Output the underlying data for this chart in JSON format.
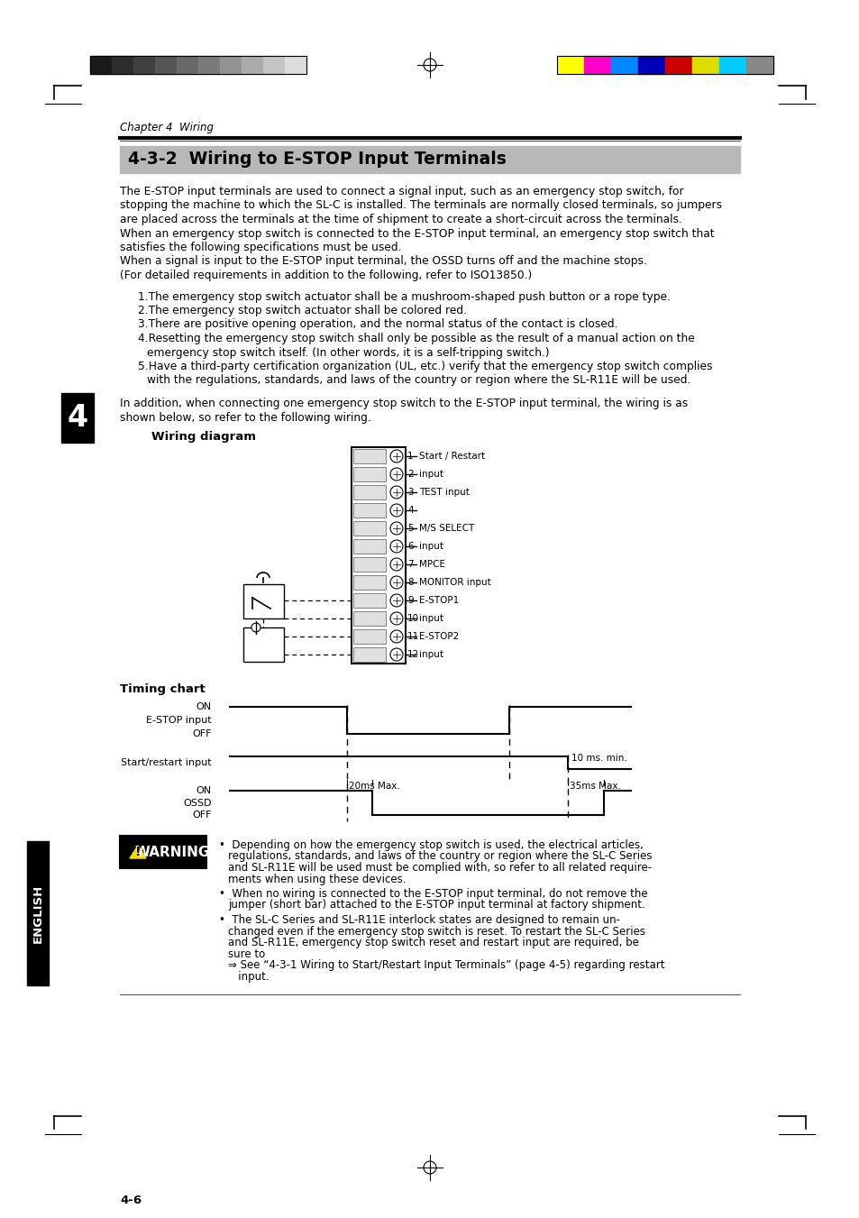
{
  "page_bg": "#ffffff",
  "title_text": "4-3-2  Wiring to E-STOP Input Terminals",
  "title_bg": "#b8b8b8",
  "chapter_text": "Chapter 4  Wiring",
  "body_text_1": [
    "The E-STOP input terminals are used to connect a signal input, such as an emergency stop switch, for",
    "stopping the machine to which the SL-C is installed. The terminals are normally closed terminals, so jumpers",
    "are placed across the terminals at the time of shipment to create a short-circuit across the terminals.",
    "When an emergency stop switch is connected to the E-STOP input terminal, an emergency stop switch that",
    "satisfies the following specifications must be used.",
    "When a signal is input to the E-STOP input terminal, the OSSD turns off and the machine stops.",
    "(For detailed requirements in addition to the following, refer to ISO13850.)"
  ],
  "numbered_items": [
    [
      "1.The emergency stop switch actuator shall be a mushroom-shaped push button or a rope type.",
      ""
    ],
    [
      "2.The emergency stop switch actuator shall be colored red.",
      ""
    ],
    [
      "3.There are positive opening operation, and the normal status of the contact is closed.",
      ""
    ],
    [
      "4.Resetting the emergency stop switch shall only be possible as the result of a manual action on the",
      "   emergency stop switch itself. (In other words, it is a self-tripping switch.)"
    ],
    [
      "5.Have a third-party certification organization (UL, etc.) verify that the emergency stop switch complies",
      "   with the regulations, standards, and laws of the country or region where the SL-R11E will be used."
    ]
  ],
  "additional_text": [
    "In addition, when connecting one emergency stop switch to the E-STOP input terminal, the wiring is as",
    "shown below, so refer to the following wiring."
  ],
  "wiring_label": "Wiring diagram",
  "timing_label": "Timing chart",
  "terminal_labels": [
    [
      "1",
      "Start / Restart",
      true
    ],
    [
      "2",
      "input",
      false
    ],
    [
      "3",
      "TEST input",
      true
    ],
    [
      "4",
      "",
      false
    ],
    [
      "5",
      "M/S SELECT",
      true
    ],
    [
      "6",
      "input",
      false
    ],
    [
      "7",
      "MPCE",
      true
    ],
    [
      "8",
      "MONITOR input",
      false
    ],
    [
      "9",
      "E-STOP1",
      true
    ],
    [
      "10",
      "input",
      false
    ],
    [
      "11",
      "E-STOP2",
      true
    ],
    [
      "12",
      "input",
      false
    ]
  ],
  "warning_title": "WARNING",
  "warning_bullets": [
    [
      "Depending on how the emergency stop switch is used, the electrical articles,",
      "regulations, standards, and laws of the country or region where the SL-C Series",
      "and SL-R11E will be used must be complied with, so refer to all related require-",
      "ments when using these devices."
    ],
    [
      "When no wiring is connected to the E-STOP input terminal, do not remove the",
      "jumper (short bar) attached to the E-STOP input terminal at factory shipment."
    ],
    [
      "The SL-C Series and SL-R11E interlock states are designed to remain un-",
      "changed even if the emergency stop switch is reset. To restart the SL-C Series",
      "and SL-R11E, emergency stop switch reset and restart input are required, be",
      "sure to",
      "⇒ See “4-3-1 Wiring to Start/Restart Input Terminals” (page 4-5) regarding restart",
      "   input."
    ]
  ],
  "page_number": "4-6",
  "side_label": "4",
  "english_label": "ENGLISH",
  "strip_left_colors": [
    "#1a1a1a",
    "#2d2d2d",
    "#404040",
    "#555555",
    "#686868",
    "#7a7a7a",
    "#929292",
    "#ababab",
    "#c4c4c4",
    "#dcdcdc"
  ],
  "strip_right_colors": [
    "#ffff00",
    "#ff00cc",
    "#0088ff",
    "#0000bb",
    "#cc0000",
    "#dddd00",
    "#00ccff",
    "#888888"
  ]
}
